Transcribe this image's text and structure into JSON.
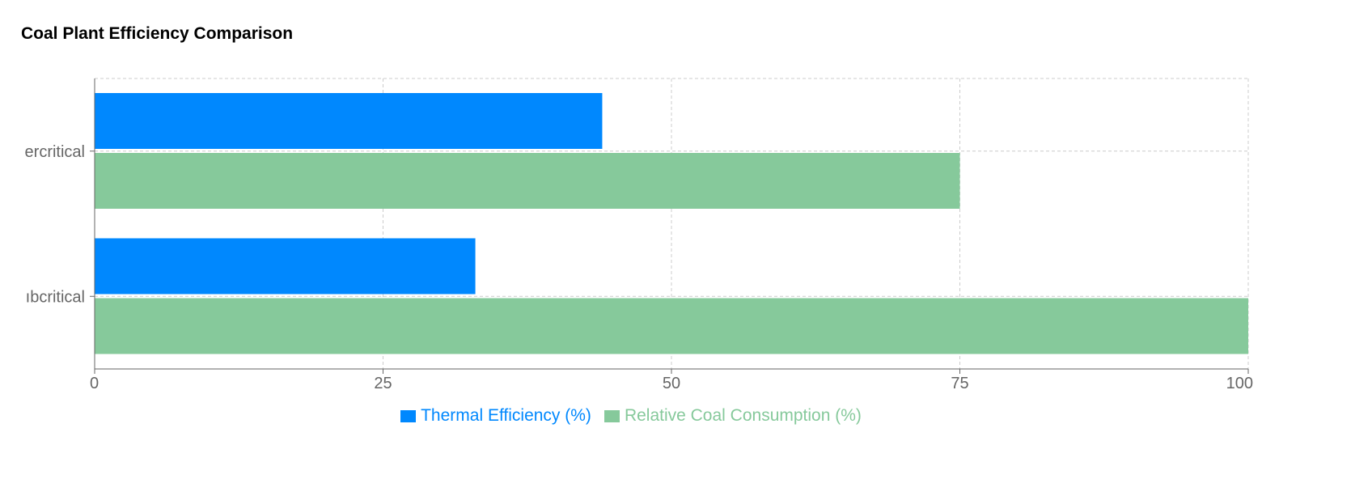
{
  "chart_data": {
    "type": "bar",
    "orientation": "horizontal",
    "title": "Coal Plant Efficiency Comparison",
    "categories": [
      "Supercritical",
      "Subcritical"
    ],
    "category_labels_visible": [
      "ercritical",
      "ıbcritical"
    ],
    "series": [
      {
        "name": "Thermal Efficiency (%)",
        "values": [
          44,
          33
        ],
        "color": "#0088fe"
      },
      {
        "name": "Relative Coal Consumption (%)",
        "values": [
          75,
          100
        ],
        "color": "#86c99b"
      }
    ],
    "xlim": [
      0,
      100
    ],
    "xticks": [
      0,
      25,
      50,
      75,
      100
    ],
    "xlabel": "",
    "ylabel": "",
    "grid": true,
    "legend_position": "bottom"
  }
}
